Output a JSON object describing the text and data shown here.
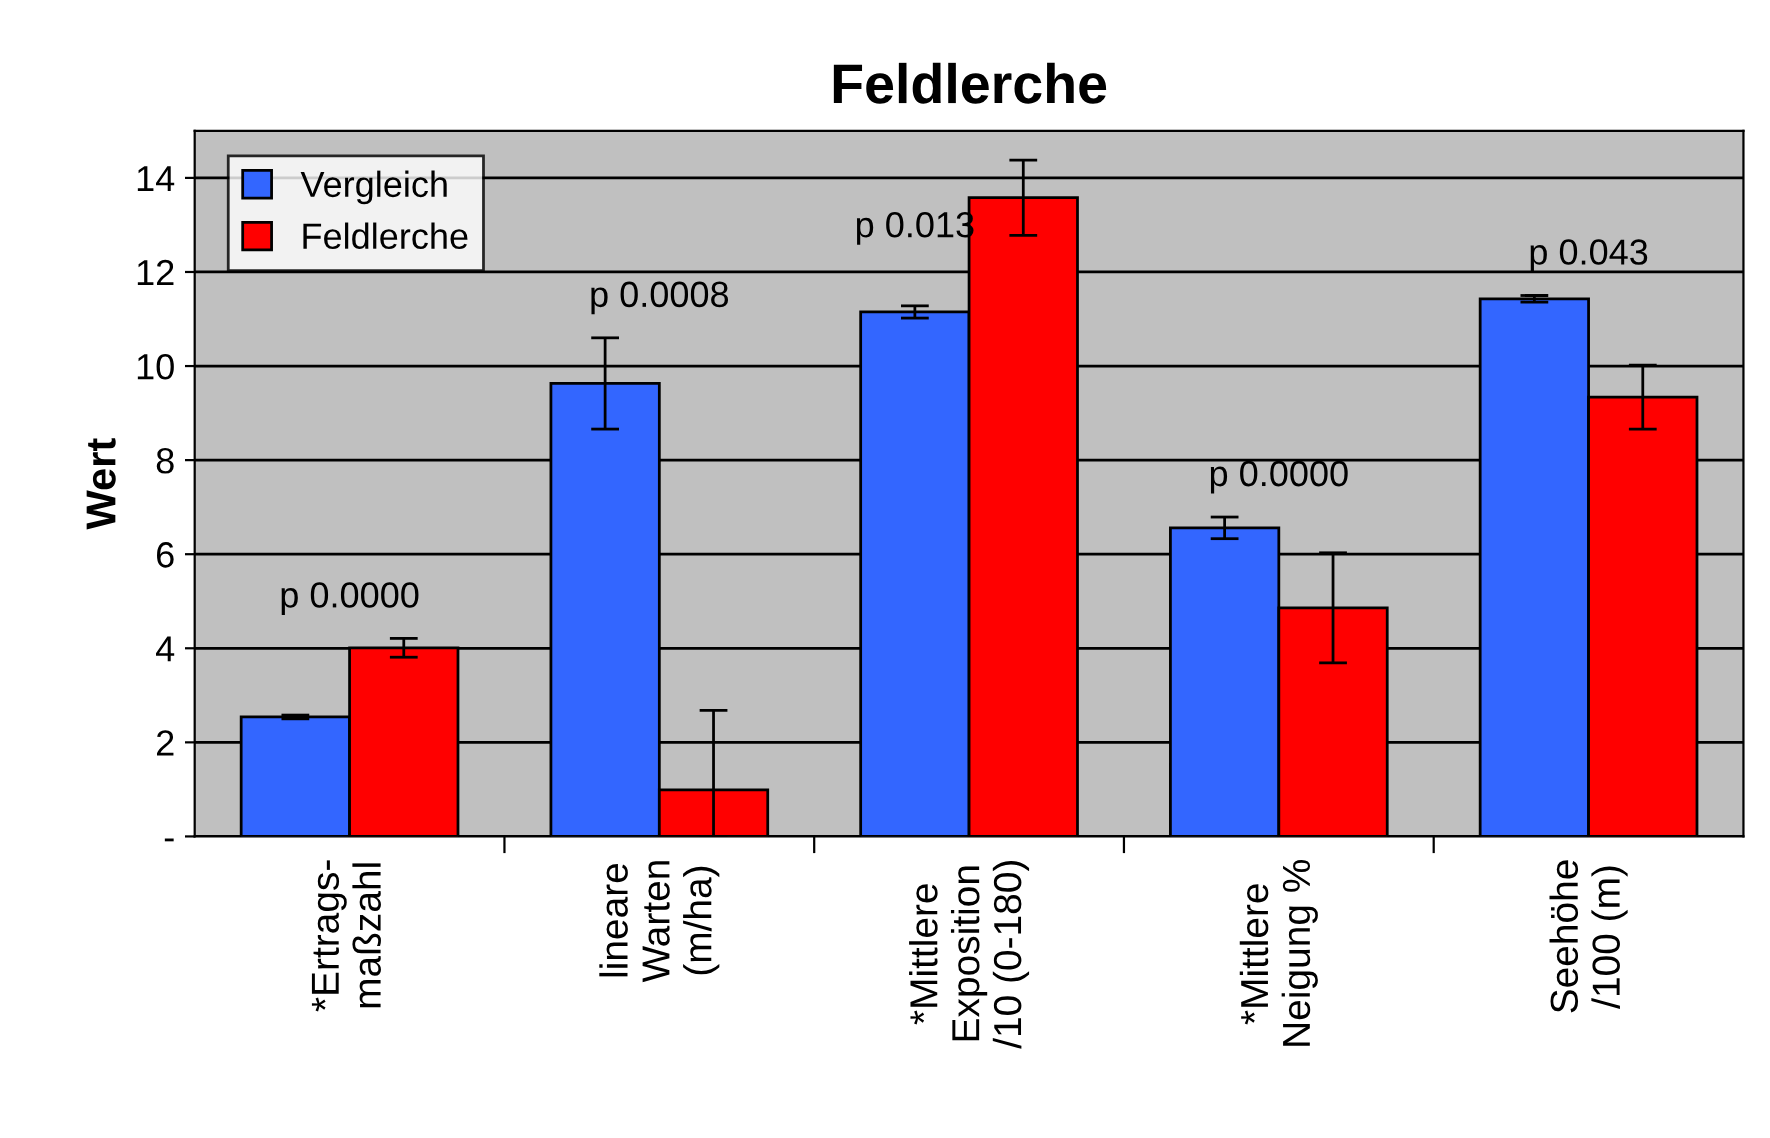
{
  "chart_data": {
    "type": "bar",
    "title": "Feldlerche",
    "ylabel": "Wert",
    "categories": [
      "*Ertrags-\nmaßzahl",
      "lineare\nWarten\n(m/ha)",
      "*Mittlere\nExposition\n/10 (0-180)",
      "*Mittlere\nNeigung %",
      "Seehöhe\n/100 (m)"
    ],
    "series": [
      {
        "name": "Vergleich",
        "color": "#3366ff",
        "values": [
          2.54,
          9.63,
          11.15,
          6.56,
          11.43
        ],
        "errors": [
          0.04,
          0.97,
          0.13,
          0.23,
          0.07
        ]
      },
      {
        "name": "Feldlerche",
        "color": "#ff0000",
        "values": [
          4.01,
          0.99,
          13.58,
          4.86,
          9.34
        ],
        "errors": [
          0.2,
          [
            0,
            2.68
          ],
          0.8,
          1.17,
          0.68
        ]
      }
    ],
    "ylim": [
      0,
      15
    ],
    "yticks": [
      {
        "value": 0,
        "label": "-"
      },
      2,
      4,
      6,
      8,
      10,
      12,
      14
    ],
    "grid": "y",
    "legend": "top left",
    "annotations": [
      "p 0.0000",
      "p 0.0008",
      "p 0.013",
      "p 0.0000",
      "p 0.043"
    ]
  }
}
